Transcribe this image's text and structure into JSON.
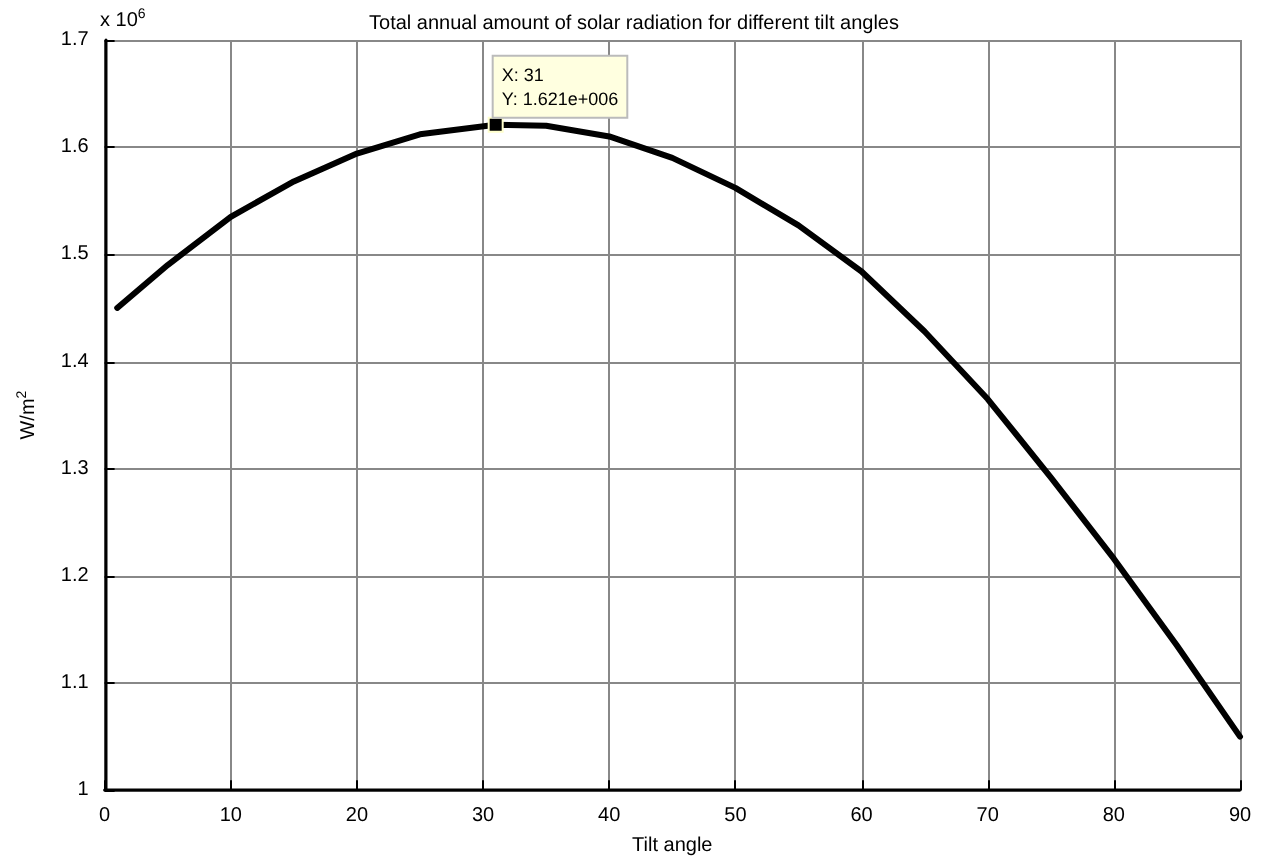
{
  "chart_data": {
    "type": "line",
    "title": "Total annual amount of solar radiation for different tilt angles",
    "xlabel": "Tilt angle",
    "ylabel": "W/m$^{2}$",
    "annotations": [
      "x 10$^{6}$",
      {
        "text": "X: 31\nY: 1.621e+006",
        "x": 31,
        "y": 1.621
      }
    ],
    "x": [
      1,
      5,
      10,
      15,
      20,
      25,
      31,
      35,
      40,
      45,
      50,
      55,
      60,
      65,
      70,
      75,
      80,
      85,
      90
    ],
    "series": [
      {
        "color": "#000000",
        "values": [
          1.45,
          1.49,
          1.535,
          1.568,
          1.594,
          1.612,
          1.621,
          1.62,
          1.61,
          1.59,
          1.562,
          1.527,
          1.484,
          1.428,
          1.365,
          1.292,
          1.216,
          1.135,
          1.05
        ]
      }
    ],
    "xlim": [
      0,
      90
    ],
    "xticks": [
      0,
      10,
      20,
      30,
      40,
      50,
      60,
      70,
      80,
      90
    ],
    "ylim": [
      1,
      1.7
    ],
    "yticks": [
      1,
      1.1,
      1.2,
      1.3,
      1.4,
      1.5,
      1.6,
      1.7
    ],
    "grid": true,
    "marker": "none",
    "line_style": "solid"
  }
}
